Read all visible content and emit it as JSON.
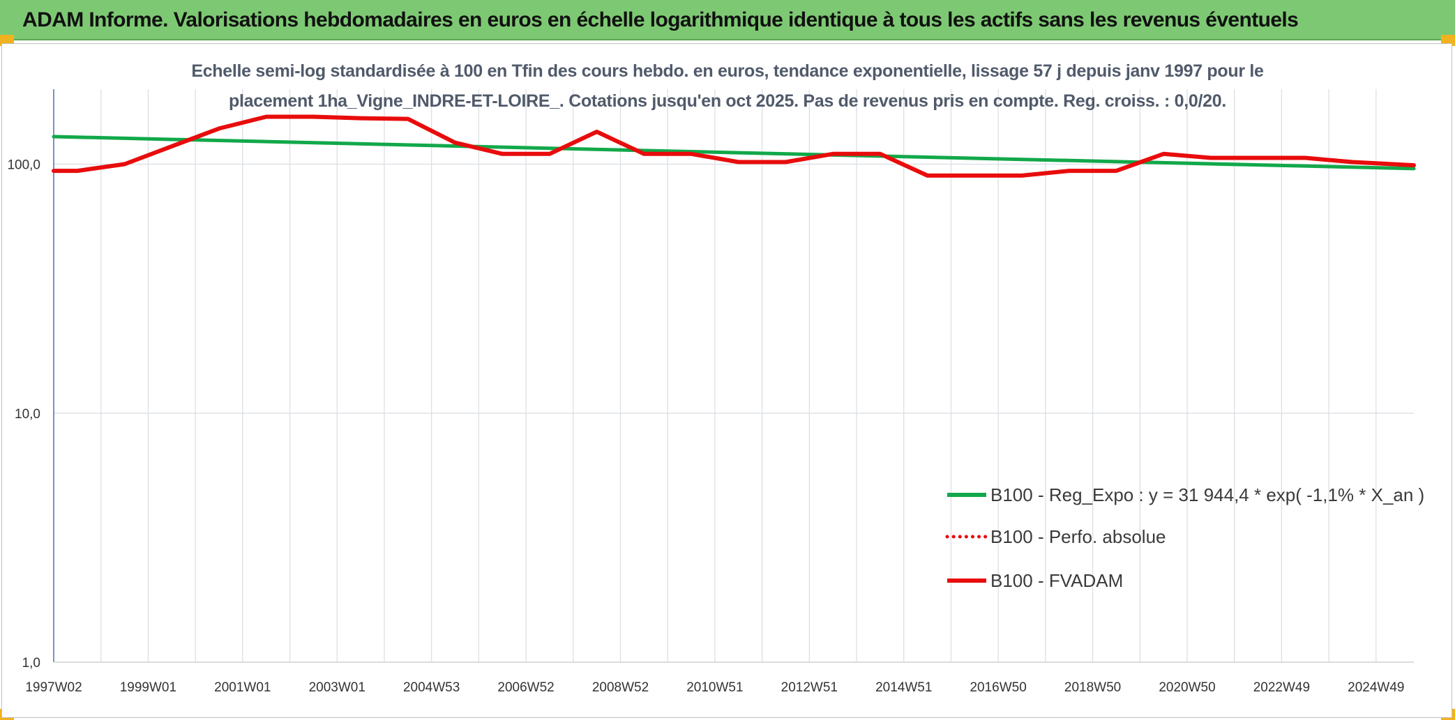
{
  "header": {
    "title": "ADAM Informe. Valorisations hebdomadaires en euros en échelle logarithmique identique à tous les actifs sans les revenus éventuels"
  },
  "colors": {
    "header_bg": "#7dc973",
    "corner_accent": "#f2b21f",
    "trend": "#12a84a",
    "fvadam": "#e80c0c",
    "perf": "#e80c0c",
    "grid": "#d9dde2",
    "axis": "#4472c4"
  },
  "chart_data": {
    "type": "line",
    "title_line1": "Echelle semi-log standardisée à 100 en Tfin des cours hebdo. en euros, tendance exponentielle, lissage 57 j depuis janv 1997 pour le",
    "title_line2": "placement 1ha_Vigne_INDRE-ET-LOIRE_. Cotations jusqu'en oct 2025. Pas de revenus pris en compte. Reg. croiss. : 0,0/20.",
    "y_scale": "log",
    "ylim": [
      1,
      200
    ],
    "y_ticks": [
      {
        "value": 1,
        "label": "1,0"
      },
      {
        "value": 10,
        "label": "10,0"
      },
      {
        "value": 100,
        "label": "100,0"
      }
    ],
    "x_range": [
      1997.0,
      2025.8
    ],
    "x_tick_labels": [
      {
        "x": 1997.0,
        "label": "1997W02"
      },
      {
        "x": 1999.0,
        "label": "1999W01"
      },
      {
        "x": 2001.0,
        "label": "2001W01"
      },
      {
        "x": 2003.0,
        "label": "2003W01"
      },
      {
        "x": 2005.0,
        "label": "2004W53"
      },
      {
        "x": 2007.0,
        "label": "2006W52"
      },
      {
        "x": 2009.0,
        "label": "2008W52"
      },
      {
        "x": 2011.0,
        "label": "2010W51"
      },
      {
        "x": 2013.0,
        "label": "2012W51"
      },
      {
        "x": 2015.0,
        "label": "2014W51"
      },
      {
        "x": 2017.0,
        "label": "2016W50"
      },
      {
        "x": 2019.0,
        "label": "2018W50"
      },
      {
        "x": 2021.0,
        "label": "2020W50"
      },
      {
        "x": 2023.0,
        "label": "2022W49"
      },
      {
        "x": 2025.0,
        "label": "2024W49"
      }
    ],
    "gridlines": "vertical every year, horizontal at decades",
    "legend_position": "bottom-right",
    "series": [
      {
        "name": "B100 - Reg_Expo : y = 31 944,4 * exp( -1,1% *  X_an )",
        "color": "#12a84a",
        "style": "solid",
        "x": [
          1997.0,
          2025.8
        ],
        "y": [
          129,
          96
        ]
      },
      {
        "name": "B100 - Perfo. absolue",
        "color": "#e80c0c",
        "style": "dotted",
        "x": [],
        "y": []
      },
      {
        "name": "B100 - FVADAM",
        "color": "#e80c0c",
        "style": "solid",
        "x": [
          1997.0,
          1997.5,
          1998.5,
          1999.5,
          2000.5,
          2001.5,
          2002.5,
          2003.5,
          2004.5,
          2005.5,
          2006.5,
          2007.5,
          2008.5,
          2009.5,
          2010.5,
          2011.5,
          2012.5,
          2013.5,
          2014.5,
          2015.5,
          2016.5,
          2017.5,
          2018.5,
          2019.5,
          2020.5,
          2021.5,
          2022.5,
          2023.5,
          2024.5,
          2025.8
        ],
        "y": [
          94,
          94,
          100,
          118,
          139,
          155,
          155,
          153,
          152,
          122,
          110,
          110,
          135,
          110,
          110,
          102,
          102,
          110,
          110,
          90,
          90,
          90,
          94,
          94,
          110,
          106,
          106,
          106,
          102,
          99
        ]
      }
    ]
  }
}
